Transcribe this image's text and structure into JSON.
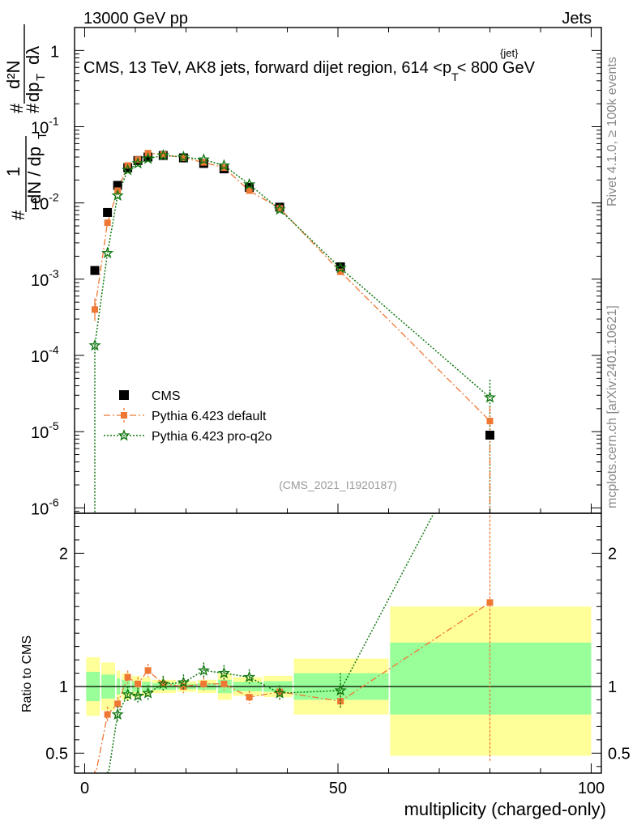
{
  "header": {
    "left": "13000 GeV pp",
    "right": "Jets"
  },
  "title": "CMS, 13 TeV, AK8 jets, forward dijet region, 614 <p",
  "title_sup": "{jet}",
  "title_sub": "T",
  "title_tail": "< 800 GeV",
  "side_labels": {
    "rivet": "Rivet 4.1.0, ≥ 100k events",
    "mcplots": "mcplots.cern.ch [arXiv:2401.10621]"
  },
  "watermark": "(CMS_2021_I1920187)",
  "ylabel_main": {
    "prefix": "#",
    "frac_outer_num": "1",
    "frac_outer_den": "dN / dp",
    "frac_outer_den_sub": "T",
    "hash_num": "#",
    "hash_den": "#",
    "frac_inner_num": "d²N",
    "frac_inner_den": "dp",
    "frac_inner_den_sub": "T",
    "frac_inner_den_tail": "dλ"
  },
  "ylabel_ratio": "Ratio to CMS",
  "xlabel": "multiplicity (charged-only)",
  "colors": {
    "data": "#000000",
    "default": "#ee7733",
    "proq2o": "#117711",
    "band_yellow": "#ffff99",
    "band_green": "#99ff99"
  },
  "legend": [
    {
      "name": "CMS",
      "key": "data"
    },
    {
      "name": "Pythia 6.423 default",
      "key": "default"
    },
    {
      "name": "Pythia 6.423 pro-q2o",
      "key": "proq2o"
    }
  ],
  "chart_data": {
    "type": "scatter",
    "x": [
      2,
      4.5,
      6.5,
      8.5,
      10.5,
      12.5,
      15.5,
      19.5,
      23.5,
      27.5,
      32.5,
      38.5,
      50.5,
      80
    ],
    "x_bins": [
      [
        0,
        3
      ],
      [
        3,
        6
      ],
      [
        6,
        7
      ],
      [
        7,
        9
      ],
      [
        9,
        11
      ],
      [
        11,
        13
      ],
      [
        13,
        18
      ],
      [
        18,
        22
      ],
      [
        22,
        26
      ],
      [
        26,
        29
      ],
      [
        29,
        35
      ],
      [
        35,
        41
      ],
      [
        41,
        60
      ],
      [
        60,
        100
      ]
    ],
    "series": [
      {
        "name": "CMS",
        "values": [
          0.0013,
          0.0075,
          0.017,
          0.029,
          0.036,
          0.04,
          0.042,
          0.039,
          0.033,
          0.028,
          0.016,
          0.0088,
          0.00145,
          9e-06
        ]
      },
      {
        "name": "Pythia 6.423 default",
        "values": [
          0.0004,
          0.0055,
          0.0145,
          0.031,
          0.037,
          0.045,
          0.043,
          0.039,
          0.034,
          0.029,
          0.0145,
          0.0085,
          0.00125,
          1.38e-05
        ]
      },
      {
        "name": "Pythia 6.423 pro-q2o",
        "values": [
          0.000135,
          0.0022,
          0.0125,
          0.027,
          0.033,
          0.038,
          0.042,
          0.04,
          0.037,
          0.031,
          0.0175,
          0.0082,
          0.0014,
          2.8e-05
        ]
      }
    ],
    "ratio": {
      "band_yellow": [
        [
          0.78,
          1.22
        ],
        [
          0.82,
          1.18
        ],
        [
          0.88,
          1.12
        ],
        [
          0.9,
          1.1
        ],
        [
          0.92,
          1.08
        ],
        [
          0.93,
          1.07
        ],
        [
          0.95,
          1.05
        ],
        [
          0.96,
          1.04
        ],
        [
          0.95,
          1.05
        ],
        [
          0.9,
          1.1
        ],
        [
          0.93,
          1.07
        ],
        [
          0.92,
          1.08
        ],
        [
          0.79,
          1.21
        ],
        [
          0.48,
          1.6
        ]
      ],
      "band_green": [
        [
          0.89,
          1.11
        ],
        [
          0.91,
          1.09
        ],
        [
          0.94,
          1.06
        ],
        [
          0.95,
          1.05
        ],
        [
          0.96,
          1.04
        ],
        [
          0.965,
          1.035
        ],
        [
          0.975,
          1.025
        ],
        [
          0.98,
          1.02
        ],
        [
          0.975,
          1.025
        ],
        [
          0.95,
          1.05
        ],
        [
          0.965,
          1.035
        ],
        [
          0.96,
          1.04
        ],
        [
          0.9,
          1.1
        ],
        [
          0.79,
          1.33
        ]
      ],
      "default": [
        0.31,
        0.79,
        0.87,
        1.07,
        1.02,
        1.12,
        1.02,
        1.0,
        1.02,
        1.02,
        0.92,
        0.96,
        0.89,
        1.63
      ],
      "proq2o": [
        0.1,
        0.3,
        0.79,
        0.94,
        0.93,
        0.95,
        1.02,
        1.03,
        1.12,
        1.1,
        1.07,
        0.95,
        0.97,
        3.1
      ]
    },
    "xlim": [
      -2,
      102
    ],
    "ylim_main": [
      8.5e-07,
      2
    ],
    "ylim_ratio": [
      0.35,
      2.3
    ],
    "xticks": [
      "0",
      "50",
      "100"
    ],
    "yticks_main": [
      {
        "base": "10",
        "exp": "-6"
      },
      {
        "base": "10",
        "exp": "-5"
      },
      {
        "base": "10",
        "exp": "-4"
      },
      {
        "base": "10",
        "exp": "-3"
      },
      {
        "base": "10",
        "exp": "-2"
      },
      {
        "base": "10",
        "exp": "-1"
      },
      {
        "base": "1",
        "exp": ""
      }
    ],
    "yticks_ratio": [
      "0.5",
      "1",
      "2"
    ],
    "legend_position": "lower-left"
  }
}
